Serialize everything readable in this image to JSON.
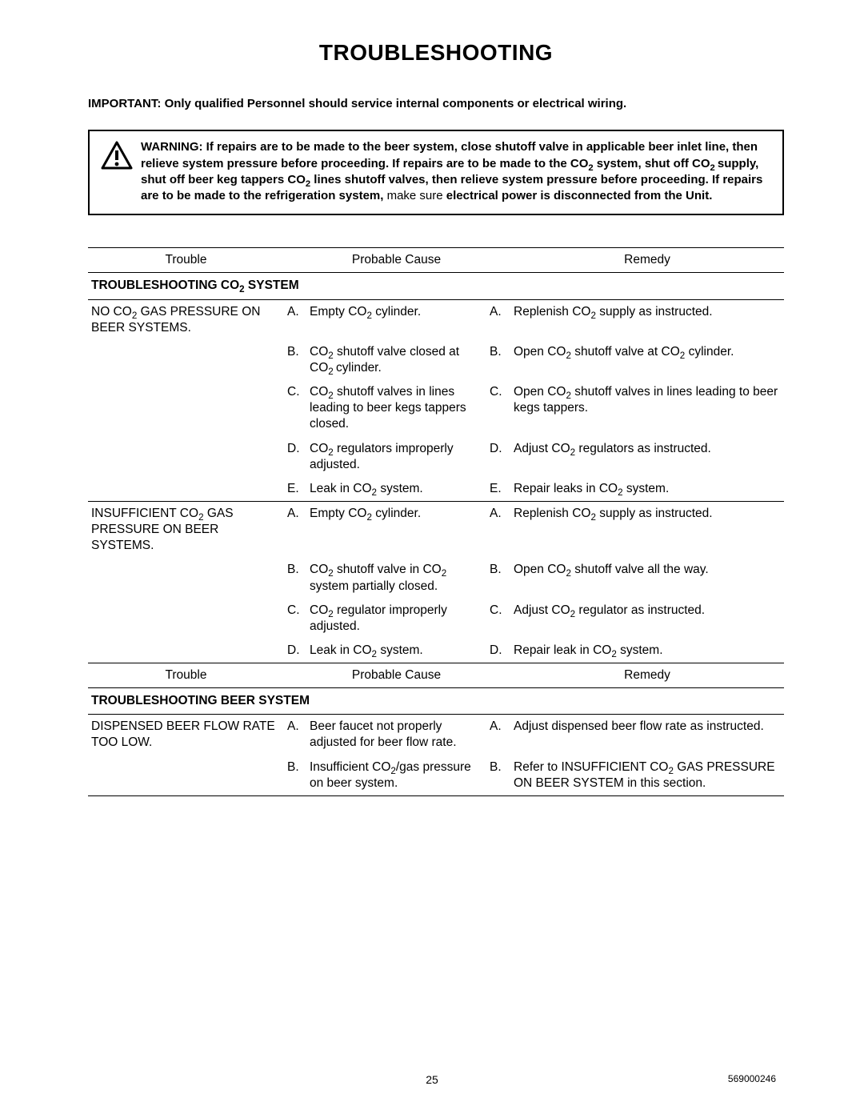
{
  "title": "TROUBLESHOOTING",
  "important": {
    "label": "IMPORTANT:",
    "text": "Only qualified Personnel should service internal components or electrical wiring."
  },
  "warning": {
    "bold1": "WARNING: If repairs are to be made to the beer system, close shutoff valve in applicable beer inlet line, then relieve system pressure before proceeding. If repairs are to be made to the CO",
    "sub1": "2",
    "bold2": " system, shut off CO",
    "sub2": "2 ",
    "bold3": "supply, shut off beer keg tappers CO",
    "sub3": "2",
    "bold4": " lines shutoff valves, then relieve system pressure before proceeding. If repairs are to be made to the refrigeration system,",
    "normal1": " make sure ",
    "bold5": " electrical power is disconnected from the Unit."
  },
  "columns": {
    "c1": "Trouble",
    "c2": "Probable Cause",
    "c3": "Remedy"
  },
  "sections": [
    {
      "heading_pre": "TROUBLESHOOTING CO",
      "heading_sub": "2",
      "heading_post": " SYSTEM",
      "groups": [
        {
          "trouble_pre": "NO CO",
          "trouble_sub": "2",
          "trouble_post": " GAS PRESSURE ON BEER SYSTEMS.",
          "rows": [
            {
              "l": "A.",
              "cause_pre": "Empty CO",
              "cause_sub": "2",
              "cause_post": " cylinder.",
              "l2": "A.",
              "rem_pre": "Replenish CO",
              "rem_sub": "2",
              "rem_post": " supply as instructed."
            },
            {
              "l": "B.",
              "cause_pre": "CO",
              "cause_sub": "2",
              "cause_post": " shutoff valve closed at CO",
              "cause_sub2": "2 ",
              "cause_post2": "cylinder.",
              "l2": "B.",
              "rem_pre": "Open CO",
              "rem_sub": "2",
              "rem_post": " shutoff valve at CO",
              "rem_sub2": "2",
              "rem_post2": " cylinder."
            },
            {
              "l": "C.",
              "cause_pre": "CO",
              "cause_sub": "2",
              "cause_post": " shutoff valves in lines leading to beer kegs tappers closed.",
              "l2": "C.",
              "rem_pre": "Open CO",
              "rem_sub": "2",
              "rem_post": " shutoff valves in lines leading to beer kegs tappers."
            },
            {
              "l": "D.",
              "cause_pre": "CO",
              "cause_sub": "2",
              "cause_post": " regulators improperly adjusted.",
              "l2": "D.",
              "rem_pre": "Adjust CO",
              "rem_sub": "2",
              "rem_post": " regulators as instructed."
            },
            {
              "l": "E.",
              "cause_pre": "Leak in CO",
              "cause_sub": "2",
              "cause_post": " system.",
              "l2": "E.",
              "rem_pre": "Repair leaks in CO",
              "rem_sub": "2",
              "rem_post": " system."
            }
          ]
        },
        {
          "trouble_pre": "INSUFFICIENT CO",
          "trouble_sub": "2",
          "trouble_post": " GAS PRESSURE ON BEER SYSTEMS.",
          "rows": [
            {
              "l": "A.",
              "cause_pre": "Empty CO",
              "cause_sub": "2",
              "cause_post": " cylinder.",
              "l2": "A.",
              "rem_pre": "Replenish CO",
              "rem_sub": "2",
              "rem_post": " supply as instructed."
            },
            {
              "l": "B.",
              "cause_pre": "CO",
              "cause_sub": "2",
              "cause_post": " shutoff valve in CO",
              "cause_sub2": "2",
              "cause_post2": " system partially closed.",
              "l2": "B.",
              "rem_pre": "Open CO",
              "rem_sub": "2",
              "rem_post": " shutoff valve all the way."
            },
            {
              "l": "C.",
              "cause_pre": "CO",
              "cause_sub": "2",
              "cause_post": " regulator improperly adjusted.",
              "l2": "C.",
              "rem_pre": "Adjust CO",
              "rem_sub": "2",
              "rem_post": " regulator as instructed."
            },
            {
              "l": "D.",
              "cause_pre": "Leak in CO",
              "cause_sub": "2",
              "cause_post": " system.",
              "l2": "D.",
              "rem_pre": "Repair leak in CO",
              "rem_sub": "2",
              "rem_post": " system."
            }
          ]
        }
      ]
    },
    {
      "repeat_header": true,
      "heading_pre": "TROUBLESHOOTING BEER SYSTEM",
      "heading_sub": "",
      "heading_post": "",
      "groups": [
        {
          "trouble_pre": "DISPENSED BEER FLOW RATE TOO LOW.",
          "trouble_sub": "",
          "trouble_post": "",
          "rows": [
            {
              "l": "A.",
              "cause_pre": "Beer faucet not properly adjusted for beer flow rate.",
              "cause_sub": "",
              "cause_post": "",
              "l2": "A.",
              "rem_pre": "Adjust dispensed beer flow rate as instructed.",
              "rem_sub": "",
              "rem_post": ""
            },
            {
              "l": "B.",
              "cause_pre": "Insufficient CO",
              "cause_sub": "2",
              "cause_post": "/gas pressure on beer system.",
              "l2": "B.",
              "rem_pre": "Refer to  INSUFFICIENT CO",
              "rem_sub": "2",
              "rem_post": " GAS PRESSURE ON BEER SYSTEM  in this section."
            }
          ]
        }
      ]
    }
  ],
  "footer": {
    "page": "25",
    "docnum": "569000246"
  }
}
